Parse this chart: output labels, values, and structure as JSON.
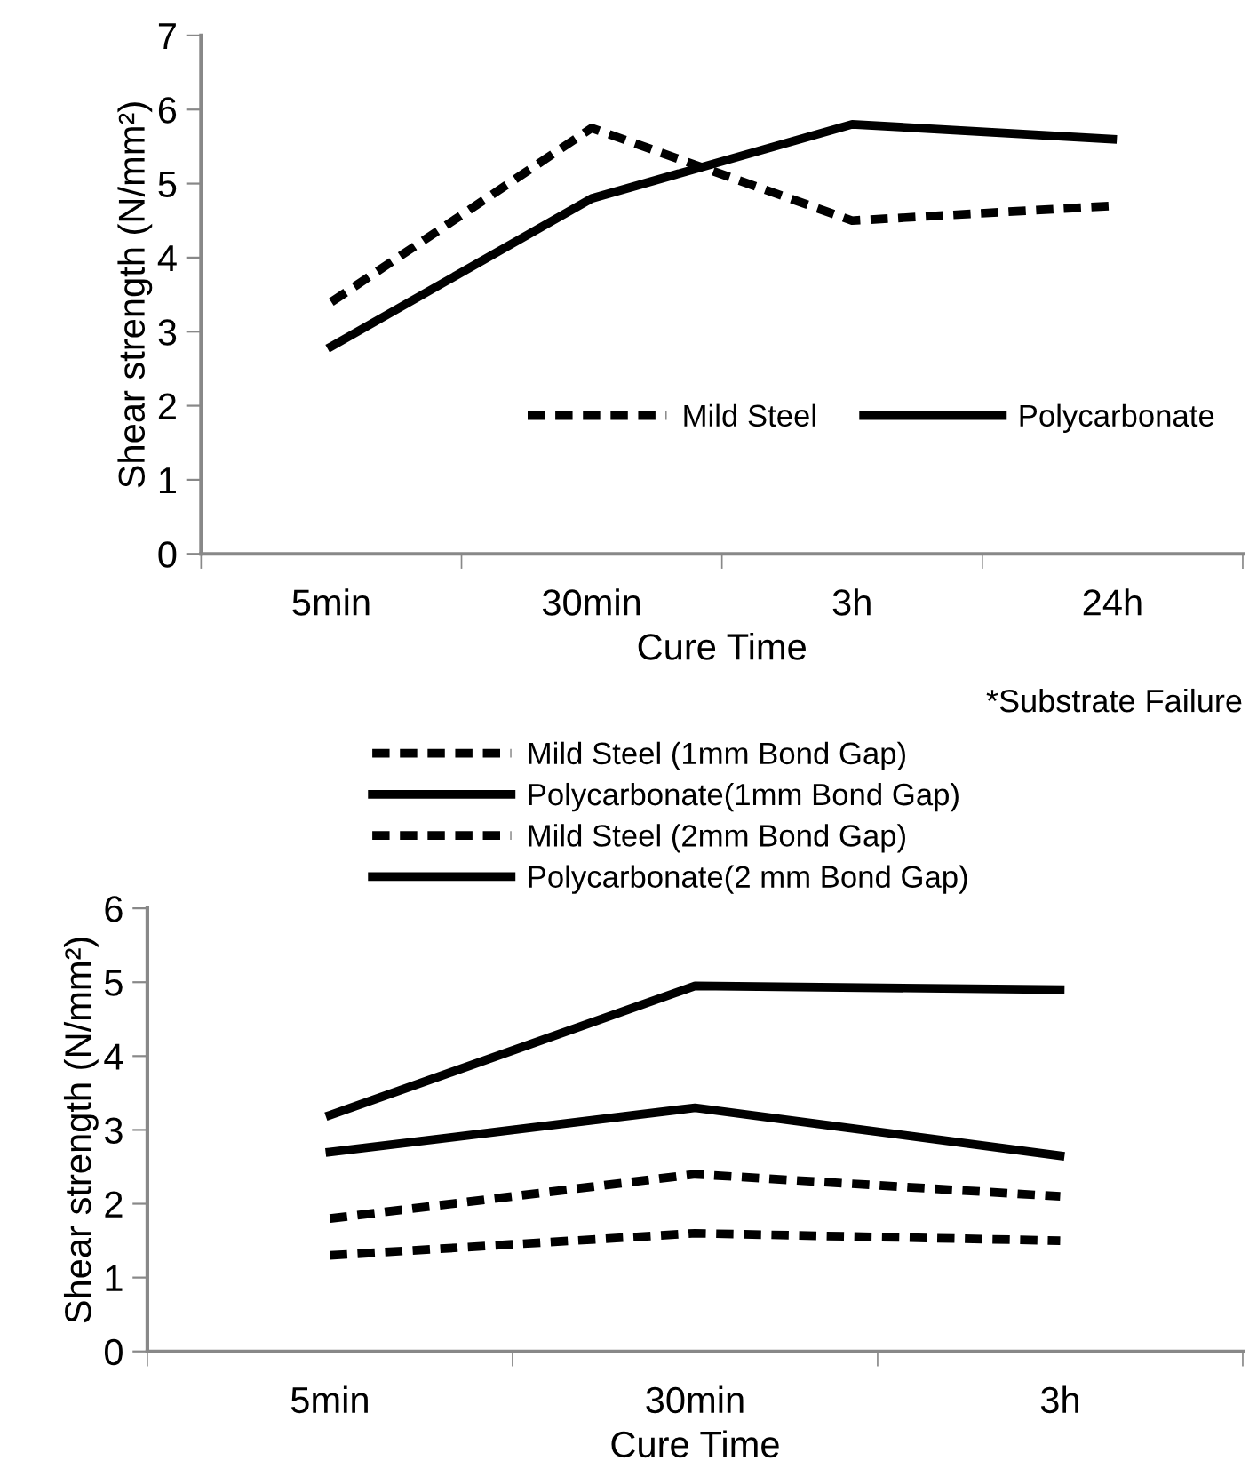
{
  "chart_data": [
    {
      "type": "line",
      "xlabel": "Cure Time",
      "ylabel": "Shear strength (N/mm²)",
      "categories": [
        "5min",
        "30min",
        "3h",
        "24h"
      ],
      "ylim": [
        0,
        7
      ],
      "yticks": [
        0,
        1,
        2,
        3,
        4,
        5,
        6,
        7
      ],
      "grid": false,
      "legend": "right",
      "annotations": [
        "*Substrate Failure"
      ],
      "series": [
        {
          "name": "Mild Steel",
          "color": "#000000",
          "line_style": "dashed",
          "values": [
            3.4,
            5.75,
            4.5,
            4.7
          ]
        },
        {
          "name": "Polycarbonate",
          "color": "#000000",
          "line_style": "solid",
          "values": [
            2.8,
            4.8,
            5.8,
            5.6
          ]
        }
      ]
    },
    {
      "type": "line",
      "xlabel": "Cure Time",
      "ylabel": "Shear strength (N/mm²)",
      "categories": [
        "5min",
        "30min",
        "3h"
      ],
      "ylim": [
        0,
        6
      ],
      "yticks": [
        0,
        1,
        2,
        3,
        4,
        5,
        6
      ],
      "grid": false,
      "legend": "top",
      "series": [
        {
          "name": "Mild Steel (1mm Bond Gap)",
          "color": "#000000",
          "line_style": "dashed",
          "values": [
            1.8,
            2.4,
            2.1
          ]
        },
        {
          "name": "Polycarbonate(1mm Bond Gap)",
          "color": "#000000",
          "line_style": "solid",
          "values": [
            3.2,
            4.95,
            4.9
          ]
        },
        {
          "name": "Mild Steel (2mm Bond Gap)",
          "color": "#000000",
          "line_style": "dashed",
          "values": [
            1.3,
            1.6,
            1.5
          ]
        },
        {
          "name": "Polycarbonate(2 mm Bond Gap)",
          "color": "#000000",
          "line_style": "solid",
          "values": [
            2.7,
            3.3,
            2.65
          ]
        }
      ]
    }
  ]
}
